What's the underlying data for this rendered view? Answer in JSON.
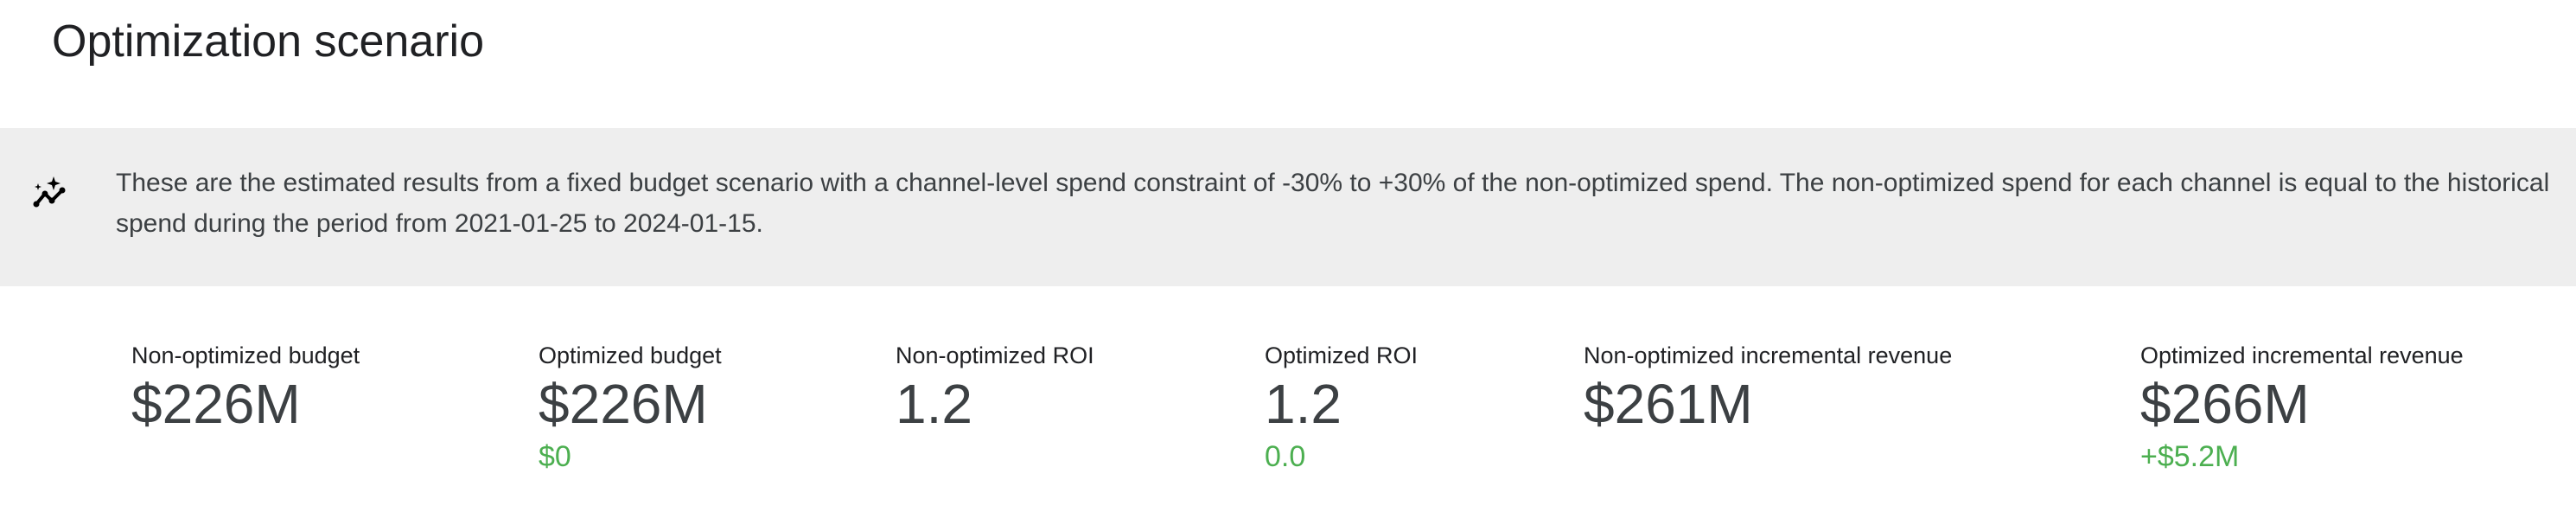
{
  "title": "Optimization scenario",
  "banner": {
    "icon": "insights-sparkle-icon",
    "text": "These are the estimated results from a fixed budget scenario with a channel-level spend constraint of -30% to +30% of the non-optimized spend. The non-optimized spend for each channel is equal to the historical spend during the period from 2021-01-25 to 2024-01-15."
  },
  "metrics": [
    {
      "label": "Non-optimized budget",
      "value": "$226M"
    },
    {
      "label": "Optimized budget",
      "value": "$226M",
      "delta": "$0"
    },
    {
      "label": "Non-optimized ROI",
      "value": "1.2"
    },
    {
      "label": "Optimized ROI",
      "value": "1.2",
      "delta": "0.0"
    },
    {
      "label": "Non-optimized incremental revenue",
      "value": "$261M"
    },
    {
      "label": "Optimized incremental revenue",
      "value": "$266M",
      "delta": "+$5.2M"
    }
  ],
  "colors": {
    "positive_delta": "#4caf50",
    "banner_bg": "#eeeeee"
  }
}
